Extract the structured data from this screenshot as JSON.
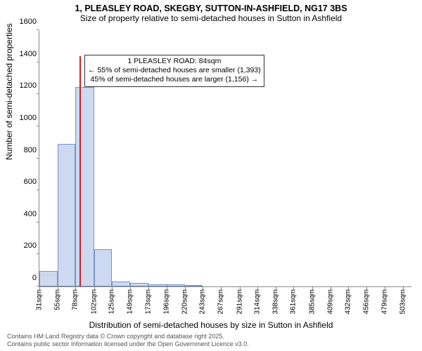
{
  "title": "1, PLEASLEY ROAD, SKEGBY, SUTTON-IN-ASHFIELD, NG17 3BS",
  "subtitle": "Size of property relative to semi-detached houses in Sutton in Ashfield",
  "y_axis_label": "Number of semi-detached properties",
  "x_axis_label": "Distribution of semi-detached houses by size in Sutton in Ashfield",
  "chart": {
    "type": "histogram",
    "ylim": [
      0,
      1600
    ],
    "ytick_step": 200,
    "x_categories": [
      "31sqm",
      "55sqm",
      "78sqm",
      "102sqm",
      "125sqm",
      "149sqm",
      "173sqm",
      "196sqm",
      "220sqm",
      "243sqm",
      "267sqm",
      "291sqm",
      "314sqm",
      "338sqm",
      "361sqm",
      "385sqm",
      "409sqm",
      "432sqm",
      "456sqm",
      "479sqm",
      "503sqm"
    ],
    "x_positions": [
      31,
      55,
      78,
      102,
      125,
      149,
      173,
      196,
      220,
      243,
      267,
      291,
      314,
      338,
      361,
      385,
      409,
      432,
      456,
      479,
      503
    ],
    "bar_spans": [
      [
        31,
        55
      ],
      [
        55,
        78
      ],
      [
        78,
        102
      ],
      [
        102,
        125
      ],
      [
        125,
        149
      ],
      [
        149,
        173
      ],
      [
        173,
        196
      ],
      [
        196,
        220
      ],
      [
        220,
        243
      ]
    ],
    "bar_values": [
      95,
      890,
      1245,
      233,
      30,
      20,
      15,
      12,
      10
    ],
    "bar_fill": "#cdd9f0",
    "bar_border": "#7a94c9",
    "axis_color": "#888888",
    "background_color": "#ffffff",
    "marker_value": 84,
    "marker_color": "#cc2222",
    "marker_height": 1440,
    "x_domain": [
      31,
      515
    ]
  },
  "annotation": {
    "line1": "1 PLEASLEY ROAD: 84sqm",
    "line2": "← 55% of semi-detached houses are smaller (1,393)",
    "line3": "45% of semi-detached houses are larger (1,156) →"
  },
  "footer": {
    "line1": "Contains HM Land Registry data © Crown copyright and database right 2025.",
    "line2": "Contains public sector information licensed under the Open Government Licence v3.0."
  }
}
